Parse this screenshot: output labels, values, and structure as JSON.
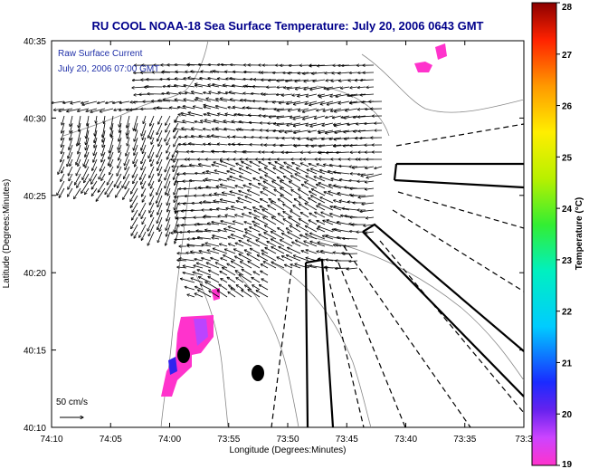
{
  "chart_data": {
    "type": "map",
    "title": "RU COOL  NOAA-18  Sea Surface Temperature:  July 20, 2006 0643 GMT",
    "xlabel": "Longitude (Degrees:Minutes)",
    "ylabel": "Latitude (Degrees:Minutes)",
    "x_ticks": [
      "74:10",
      "74:05",
      "74:00",
      "73:55",
      "73:50",
      "73:45",
      "73:40",
      "73:35",
      "73:3"
    ],
    "y_ticks": [
      "40:35",
      "40:30",
      "40:25",
      "40:20",
      "40:15",
      "40:10"
    ],
    "overlay_lines": [
      "Raw Surface Current",
      "July 20, 2006 07:00 GMT"
    ],
    "scale_label": "50 cm/s",
    "colorbar": {
      "label": "Temperature (°C)",
      "ticks": [
        "28",
        "27",
        "26",
        "25",
        "24",
        "23",
        "22",
        "21",
        "20",
        "19"
      ],
      "range": [
        19,
        28
      ]
    }
  }
}
